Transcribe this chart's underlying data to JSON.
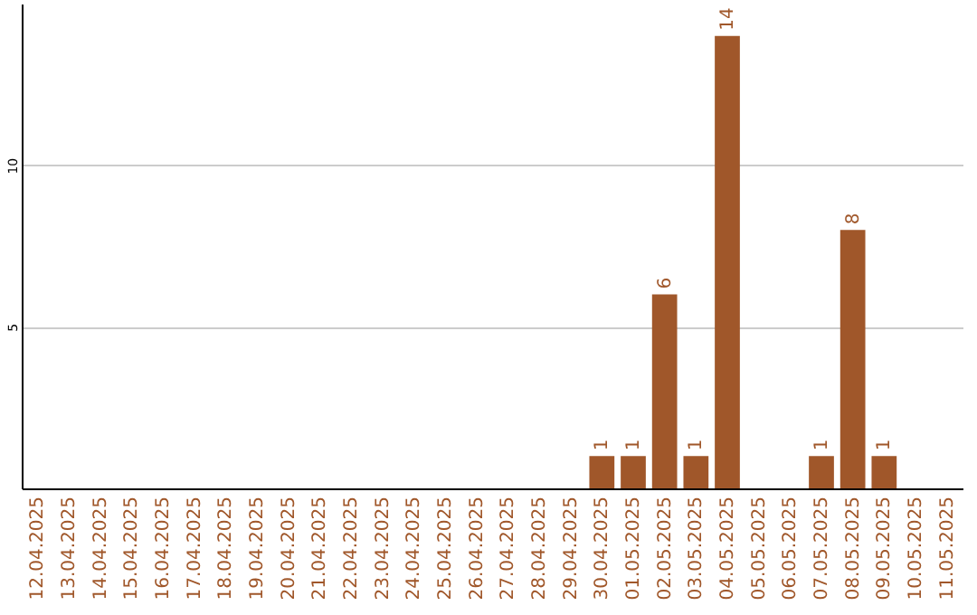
{
  "chart_data": {
    "type": "bar",
    "categories": [
      "12.04.2025",
      "13.04.2025",
      "14.04.2025",
      "15.04.2025",
      "16.04.2025",
      "17.04.2025",
      "18.04.2025",
      "19.04.2025",
      "20.04.2025",
      "21.04.2025",
      "22.04.2025",
      "23.04.2025",
      "24.04.2025",
      "25.04.2025",
      "26.04.2025",
      "27.04.2025",
      "28.04.2025",
      "29.04.2025",
      "30.04.2025",
      "01.05.2025",
      "02.05.2025",
      "03.05.2025",
      "04.05.2025",
      "05.05.2025",
      "06.05.2025",
      "07.05.2025",
      "08.05.2025",
      "09.05.2025",
      "10.05.2025",
      "11.05.2025"
    ],
    "values": [
      null,
      null,
      null,
      null,
      null,
      null,
      null,
      null,
      null,
      null,
      null,
      null,
      null,
      null,
      null,
      null,
      null,
      null,
      1,
      1,
      6,
      1,
      14,
      null,
      null,
      1,
      8,
      1,
      null,
      null
    ],
    "color": "#a0572a",
    "ylim": [
      0,
      15
    ],
    "yticks": [
      5,
      10
    ],
    "grid": "y",
    "data_labels": true
  }
}
